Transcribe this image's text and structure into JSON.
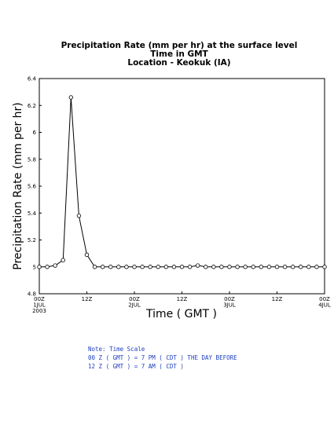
{
  "chart_data": {
    "type": "line",
    "title": "Precipitation Rate (mm per hr) at the surface level",
    "subtitle_1": "Time in GMT",
    "subtitle_2": "Location - Keokuk (IA)",
    "xlabel": "Time ( GMT )",
    "ylabel": "Precipitation Rate (mm per hr)",
    "ylim": [
      4.8,
      6.4
    ],
    "yticks": [
      "4.8",
      "5",
      "5.2",
      "5.4",
      "5.6",
      "5.8",
      "6",
      "6.2",
      "6.4"
    ],
    "x_range_hours": [
      0,
      72
    ],
    "xticks": [
      {
        "hour": 0,
        "lines": [
          "00Z",
          "1JUL",
          "2003"
        ]
      },
      {
        "hour": 12,
        "lines": [
          "12Z"
        ]
      },
      {
        "hour": 24,
        "lines": [
          "00Z",
          "2JUL"
        ]
      },
      {
        "hour": 36,
        "lines": [
          "12Z"
        ]
      },
      {
        "hour": 48,
        "lines": [
          "00Z",
          "3JUL"
        ]
      },
      {
        "hour": 60,
        "lines": [
          "12Z"
        ]
      },
      {
        "hour": 72,
        "lines": [
          "00Z",
          "4JUL"
        ]
      }
    ],
    "x_hours": [
      0,
      2,
      4,
      6,
      8,
      10,
      12,
      14,
      16,
      18,
      20,
      22,
      24,
      26,
      28,
      30,
      32,
      34,
      36,
      38,
      40,
      42,
      44,
      46,
      48,
      50,
      52,
      54,
      56,
      58,
      60,
      62,
      64,
      66,
      68,
      70,
      72
    ],
    "values": [
      5,
      5,
      5.01,
      5.05,
      6.26,
      5.38,
      5.09,
      5,
      5,
      5,
      5,
      5,
      5,
      5,
      5,
      5,
      5,
      5,
      5,
      5,
      5.01,
      5,
      5,
      5,
      5,
      5,
      5,
      5,
      5,
      5,
      5,
      5,
      5,
      5,
      5,
      5,
      5
    ],
    "grid": false,
    "line_color": "#000000",
    "marker": "open-circle"
  },
  "note": {
    "line1": "Note: Time Scale",
    "line2": "00 Z ( GMT ) = 7 PM ( CDT ) THE DAY BEFORE",
    "line3": "12 Z ( GMT ) = 7 AM ( CDT )",
    "color": "#1f3fbf"
  }
}
